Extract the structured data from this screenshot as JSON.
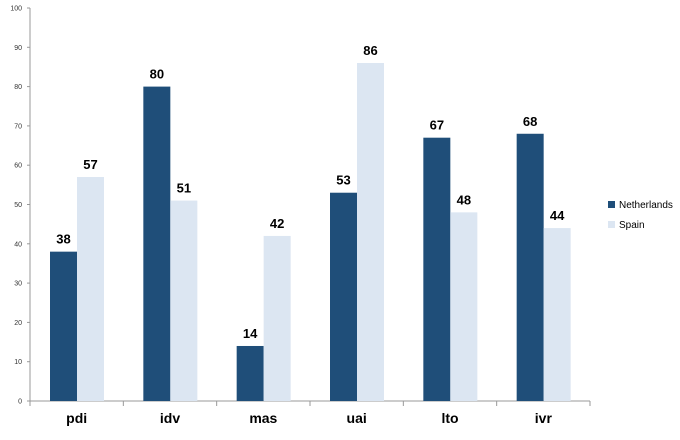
{
  "chart_data": {
    "type": "bar",
    "categories": [
      "pdi",
      "idv",
      "mas",
      "uai",
      "lto",
      "ivr"
    ],
    "series": [
      {
        "name": "Netherlands",
        "color": "#1f4e79",
        "values": [
          38,
          80,
          14,
          53,
          67,
          68
        ]
      },
      {
        "name": "Spain",
        "color": "#dce6f2",
        "values": [
          57,
          51,
          42,
          86,
          48,
          44
        ]
      }
    ],
    "data_labels": {
      "Netherlands": [
        "38",
        "80",
        "14",
        "53",
        "67",
        "68"
      ],
      "Spain": [
        "57",
        "51",
        "42",
        "86",
        "48",
        "44"
      ]
    },
    "title": "",
    "xlabel": "",
    "ylabel": "",
    "ylim": [
      0,
      100
    ],
    "yticks": [
      0,
      10,
      20,
      30,
      40,
      50,
      60,
      70,
      80,
      90,
      100
    ],
    "grid": false,
    "legend_position": "right"
  }
}
